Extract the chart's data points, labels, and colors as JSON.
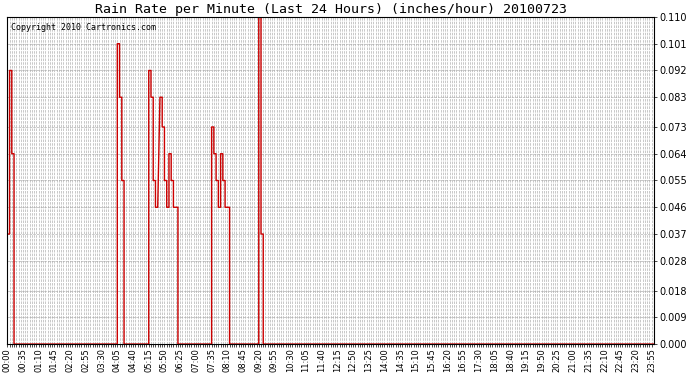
{
  "title": "Rain Rate per Minute (Last 24 Hours) (inches/hour) 20100723",
  "copyright": "Copyright 2010 Cartronics.com",
  "line_color": "#cc0000",
  "background_color": "#ffffff",
  "grid_color": "#aaaaaa",
  "ylim": [
    0.0,
    0.11
  ],
  "yticks": [
    0.0,
    0.009,
    0.018,
    0.028,
    0.037,
    0.046,
    0.055,
    0.064,
    0.073,
    0.083,
    0.092,
    0.101,
    0.11
  ],
  "tick_interval_minutes": 5,
  "label_interval_minutes": 35,
  "total_minutes": 1440,
  "series": [
    [
      0,
      0.037
    ],
    [
      5,
      0.037
    ],
    [
      5,
      0.092
    ],
    [
      10,
      0.092
    ],
    [
      10,
      0.064
    ],
    [
      15,
      0.064
    ],
    [
      15,
      0.0
    ],
    [
      35,
      0.0
    ],
    [
      245,
      0.0
    ],
    [
      245,
      0.101
    ],
    [
      250,
      0.101
    ],
    [
      250,
      0.083
    ],
    [
      255,
      0.083
    ],
    [
      255,
      0.055
    ],
    [
      260,
      0.055
    ],
    [
      260,
      0.0
    ],
    [
      315,
      0.0
    ],
    [
      315,
      0.092
    ],
    [
      320,
      0.092
    ],
    [
      320,
      0.083
    ],
    [
      325,
      0.083
    ],
    [
      325,
      0.055
    ],
    [
      330,
      0.055
    ],
    [
      330,
      0.046
    ],
    [
      335,
      0.046
    ],
    [
      340,
      0.083
    ],
    [
      345,
      0.083
    ],
    [
      345,
      0.073
    ],
    [
      350,
      0.073
    ],
    [
      350,
      0.055
    ],
    [
      355,
      0.055
    ],
    [
      355,
      0.046
    ],
    [
      360,
      0.046
    ],
    [
      360,
      0.064
    ],
    [
      365,
      0.064
    ],
    [
      365,
      0.055
    ],
    [
      370,
      0.055
    ],
    [
      370,
      0.046
    ],
    [
      375,
      0.046
    ],
    [
      380,
      0.046
    ],
    [
      380,
      0.0
    ],
    [
      455,
      0.0
    ],
    [
      455,
      0.073
    ],
    [
      460,
      0.073
    ],
    [
      460,
      0.064
    ],
    [
      465,
      0.064
    ],
    [
      465,
      0.055
    ],
    [
      470,
      0.055
    ],
    [
      470,
      0.046
    ],
    [
      475,
      0.046
    ],
    [
      475,
      0.064
    ],
    [
      480,
      0.064
    ],
    [
      480,
      0.055
    ],
    [
      485,
      0.055
    ],
    [
      485,
      0.046
    ],
    [
      495,
      0.046
    ],
    [
      495,
      0.0
    ],
    [
      560,
      0.0
    ],
    [
      560,
      0.11
    ],
    [
      565,
      0.11
    ],
    [
      565,
      0.037
    ],
    [
      570,
      0.037
    ],
    [
      570,
      0.0
    ],
    [
      1440,
      0.0
    ]
  ]
}
